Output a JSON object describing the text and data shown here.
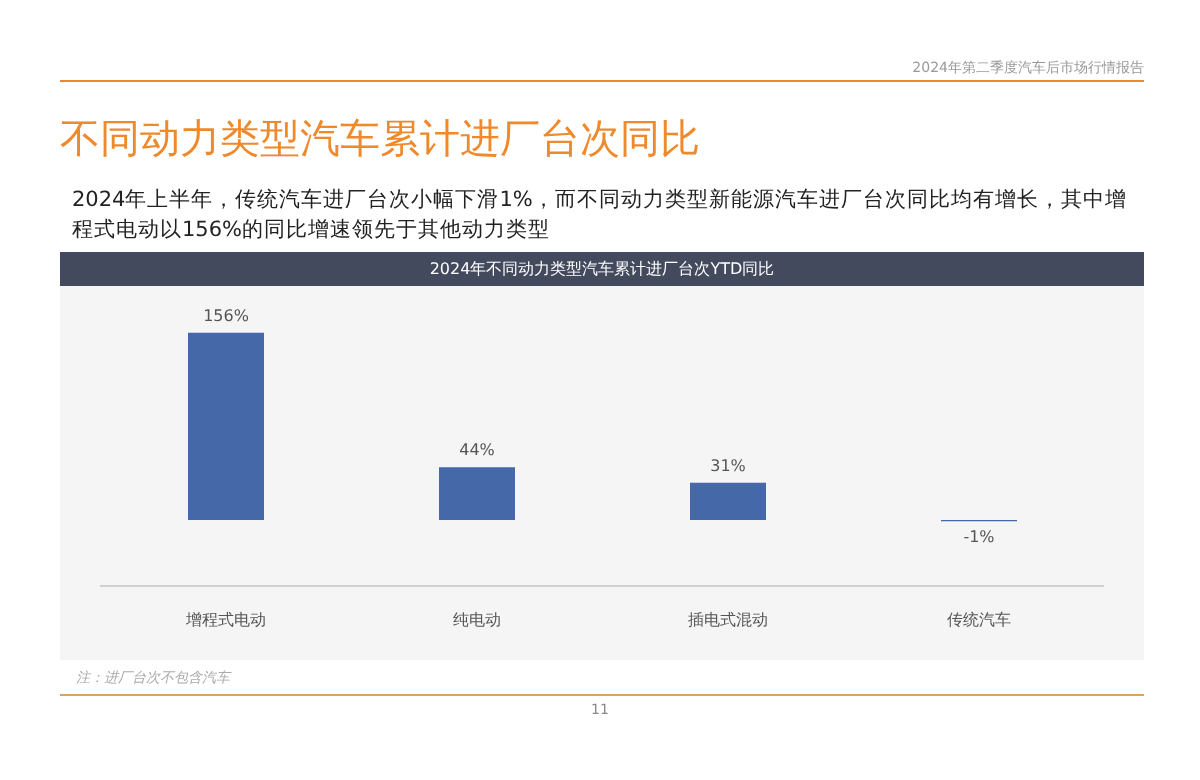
{
  "chart_data": {
    "type": "bar",
    "title": "不同动力类型汽车累计进厂台次同比",
    "subtitle": "2024年上半年，传统汽车进厂台次小幅下滑1%，而不同动力类型新能源汽车进厂台次同比均有增长，其中增程式电动以156%的同比增速领先于其他动力类型",
    "annotations": [
      "2024年第二季度汽车后市场行情报告",
      "2024年不同动力类型汽车累计进厂台次YTD同比",
      "注：进厂台次不包含汽车",
      "11"
    ],
    "categories": [
      "增程式电动",
      "纯电动",
      "插电式混动",
      "传统汽车"
    ],
    "values": [
      156,
      44,
      31,
      -1
    ],
    "color": "#4468a8",
    "value_labels": [
      "156%",
      "44%",
      "31%",
      "-1%"
    ],
    "tick_labels": "x"
  }
}
